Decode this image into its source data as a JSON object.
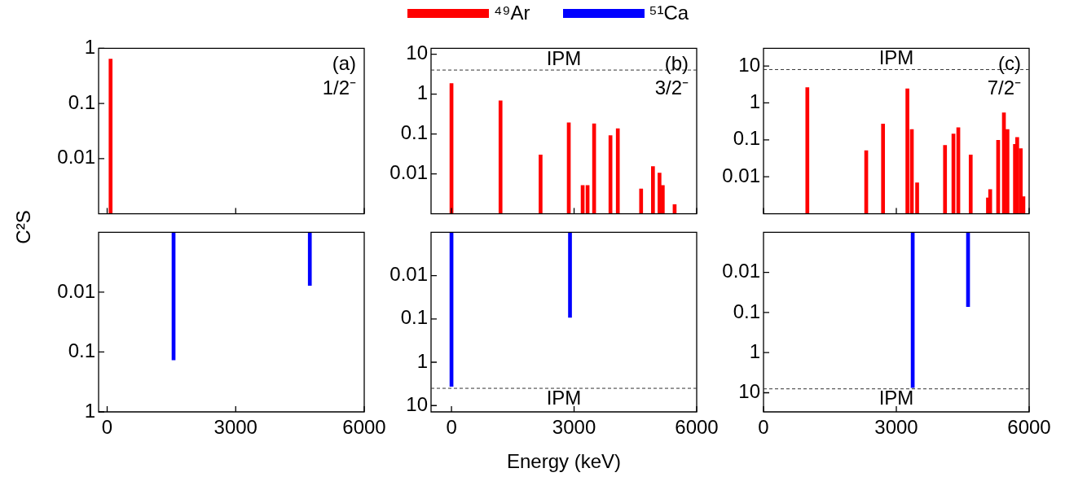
{
  "chart_data": [
    {
      "type": "bar",
      "ylabel": "C²S",
      "annotations": [
        "(a)",
        "1/2⁻"
      ],
      "x": [
        80
      ],
      "xlim": [
        -200,
        6000
      ],
      "xticks": [
        0,
        3000,
        6000
      ],
      "ylim": [
        0.001,
        1
      ],
      "yticks": [
        0.01,
        0.1,
        1
      ],
      "log": "y",
      "tick_labels": "y",
      "series": [
        {
          "color": "#ff0000",
          "values": [
            0.64
          ]
        }
      ]
    },
    {
      "type": "bar",
      "annotations": [
        "(b)",
        "3/2⁻"
      ],
      "legend": "top",
      "x": [
        0,
        1200,
        2180,
        2870,
        3210,
        3330,
        3490,
        3890,
        4070,
        4640,
        4930,
        5090,
        5170,
        5460
      ],
      "xlim": [
        -500,
        6000
      ],
      "xticks": [
        0,
        3000,
        6000
      ],
      "ylim": [
        0.001,
        14
      ],
      "yticks": [
        0.01,
        0.1,
        1,
        10
      ],
      "log": "y",
      "tick_labels": "y",
      "ref_lines": [
        {
          "axis": "y",
          "value": 4,
          "label": "IPM",
          "line_style": "dashed",
          "color": "#333333"
        }
      ],
      "series": [
        {
          "name": "⁴⁹Ar",
          "color": "#ff0000",
          "values": [
            1.85,
            0.68,
            0.03,
            0.19,
            0.0051,
            0.0051,
            0.18,
            0.091,
            0.135,
            0.0042,
            0.0152,
            0.0105,
            0.0051,
            0.0017
          ]
        }
      ]
    },
    {
      "type": "bar",
      "annotations": [
        "(c)",
        "7/2⁻"
      ],
      "x": [
        990,
        2320,
        2700,
        3250,
        3350,
        3470,
        4100,
        4290,
        4400,
        4680,
        5070,
        5120,
        5300,
        5430,
        5510,
        5680,
        5730,
        5810,
        5870
      ],
      "xlim": [
        0,
        6000
      ],
      "xticks": [
        0,
        3000,
        6000
      ],
      "ylim": [
        0.001,
        30
      ],
      "yticks": [
        0.01,
        0.1,
        1,
        10
      ],
      "log": "y",
      "tick_labels": "y",
      "ref_lines": [
        {
          "axis": "y",
          "value": 8,
          "label": "IPM",
          "line_style": "dashed",
          "color": "#333333"
        }
      ],
      "series": [
        {
          "color": "#ff0000",
          "values": [
            2.6,
            0.051,
            0.27,
            2.4,
            0.19,
            0.0069,
            0.071,
            0.145,
            0.215,
            0.039,
            0.0027,
            0.0045,
            0.097,
            0.54,
            0.19,
            0.076,
            0.116,
            0.058,
            0.0029
          ]
        }
      ]
    },
    {
      "type": "bar",
      "x": [
        1550,
        4730
      ],
      "xlim": [
        -200,
        6000
      ],
      "xticks": [
        0,
        3000,
        6000
      ],
      "ylim": [
        1,
        0.001
      ],
      "yticks": [
        0.01,
        0.1,
        1
      ],
      "log": "y",
      "series": [
        {
          "color": "#0000ff",
          "values": [
            0.135,
            0.0077
          ]
        }
      ]
    },
    {
      "type": "bar",
      "xlabel": "Energy (keV)",
      "x": [
        0,
        2900
      ],
      "xlim": [
        -500,
        6000
      ],
      "xticks": [
        0,
        3000,
        6000
      ],
      "ylim": [
        14,
        0.001
      ],
      "yticks": [
        0.01,
        0.1,
        1,
        10
      ],
      "log": "y",
      "ref_lines": [
        {
          "axis": "y",
          "value": 4,
          "label": "IPM",
          "line_style": "dashed",
          "color": "#333333"
        }
      ],
      "series": [
        {
          "name": "⁵¹Ca",
          "color": "#0000ff",
          "values": [
            3.6,
            0.092
          ]
        }
      ]
    },
    {
      "type": "bar",
      "x": [
        3370,
        4620
      ],
      "xlim": [
        0,
        6000
      ],
      "xticks": [
        0,
        3000,
        6000
      ],
      "ylim": [
        30,
        0.001
      ],
      "yticks": [
        0.01,
        0.1,
        1,
        10
      ],
      "log": "y",
      "ref_lines": [
        {
          "axis": "y",
          "value": 8,
          "label": "IPM",
          "line_style": "dashed",
          "color": "#333333"
        }
      ],
      "series": [
        {
          "color": "#0000ff",
          "values": [
            7.4,
            0.071
          ]
        }
      ]
    }
  ]
}
